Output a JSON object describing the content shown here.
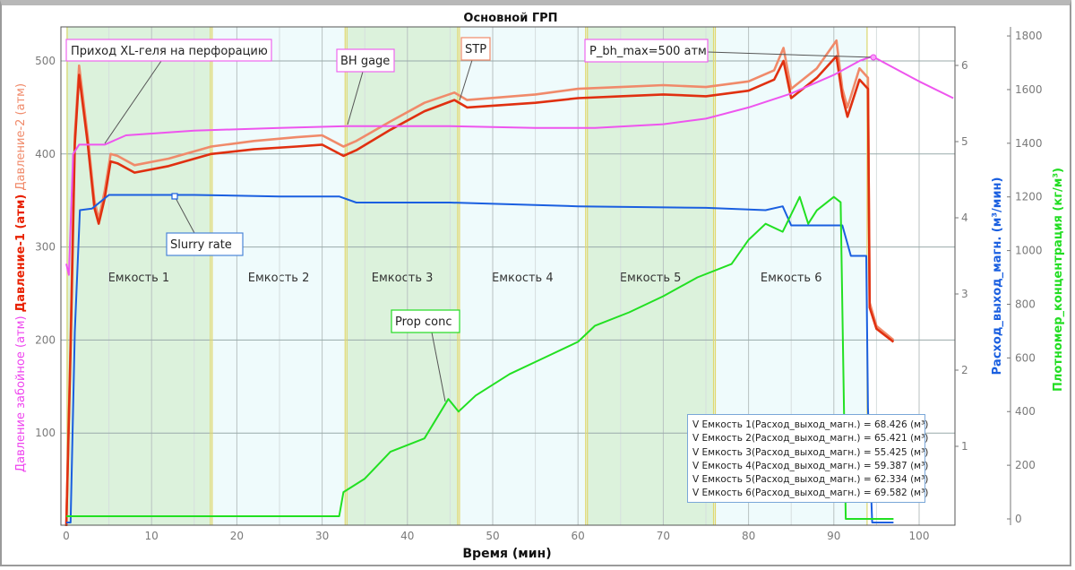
{
  "chart_data": {
    "type": "line",
    "title": "Основной ГРП",
    "xlabel": "Время (мин)",
    "xlim": [
      0,
      104
    ],
    "xticks": [
      0,
      10,
      20,
      30,
      40,
      50,
      60,
      70,
      80,
      90,
      100
    ],
    "grid": true,
    "axes": {
      "left": {
        "labels": [
          "Давление забойное (атм)",
          "Давление-1 (атм)",
          "Давление-2 (атм)"
        ],
        "label_colors": [
          "#ee44ee",
          "#e82000",
          "#f08a6a"
        ],
        "ylim": [
          0,
          540
        ],
        "ticks": [
          100,
          200,
          300,
          400,
          500
        ]
      },
      "right1": {
        "label": "Расход_выход_магн. (м³/мин)",
        "color": "#1a5fe0",
        "ylim": [
          0,
          6.6
        ],
        "ticks": [
          1,
          2,
          3,
          4,
          5,
          6
        ]
      },
      "right2": {
        "label": "Плотномер_концентрация (кг/м³)",
        "color": "#22dd22",
        "ylim": [
          0,
          1850
        ],
        "ticks": [
          0,
          200,
          400,
          600,
          800,
          1000,
          1200,
          1400,
          1600,
          1800
        ]
      }
    },
    "zones": [
      {
        "label": "Емкость 1",
        "start": 0,
        "end": 17,
        "color": "#dcf2dc"
      },
      {
        "label": "Емкость 2",
        "start": 17,
        "end": 32.8,
        "color": "#effbfc"
      },
      {
        "label": "Емкость 3",
        "start": 32.8,
        "end": 46,
        "color": "#dcf2dc"
      },
      {
        "label": "Емкость 4",
        "start": 46,
        "end": 61,
        "color": "#effbfc"
      },
      {
        "label": "Емкость 5",
        "start": 61,
        "end": 76,
        "color": "#dcf2dc"
      },
      {
        "label": "Емкость 6",
        "start": 76,
        "end": 94,
        "color": "#effbfc"
      }
    ],
    "series": [
      {
        "name": "Давление-2 (атм)",
        "axis": "left",
        "color": "#f08a6a",
        "x": [
          0,
          0.5,
          1,
          1.5,
          2.5,
          3.3,
          3.8,
          4.5,
          5.2,
          6,
          8,
          12,
          17,
          22,
          27,
          30,
          32.5,
          34,
          38,
          42,
          45.5,
          47,
          55,
          60,
          65,
          70,
          75,
          80,
          83,
          84.1,
          85,
          88,
          90.3,
          91,
          91.6,
          93,
          94,
          94.2,
          95,
          97
        ],
        "y": [
          0,
          200,
          420,
          495,
          420,
          350,
          330,
          360,
          400,
          398,
          388,
          395,
          408,
          414,
          418,
          420,
          408,
          414,
          435,
          455,
          466,
          458,
          464,
          470,
          472,
          474,
          472,
          478,
          490,
          514,
          470,
          492,
          522,
          470,
          450,
          492,
          482,
          240,
          215,
          200
        ]
      },
      {
        "name": "Давление-1 (атм)",
        "axis": "left",
        "color": "#e03010",
        "x": [
          0,
          0.5,
          1,
          1.5,
          2.5,
          3.3,
          3.8,
          4.5,
          5.2,
          6,
          8,
          12,
          17,
          22,
          27,
          30,
          32.5,
          34,
          38,
          42,
          45.5,
          47,
          55,
          60,
          65,
          70,
          75,
          80,
          83,
          84.1,
          85,
          88,
          90.3,
          91,
          91.6,
          93,
          94,
          94.2,
          95,
          97
        ],
        "y": [
          0,
          190,
          410,
          485,
          412,
          342,
          325,
          352,
          392,
          390,
          380,
          387,
          400,
          405,
          408,
          410,
          398,
          404,
          426,
          446,
          458,
          450,
          455,
          460,
          462,
          464,
          462,
          468,
          480,
          500,
          460,
          482,
          505,
          462,
          440,
          480,
          470,
          235,
          212,
          198
        ]
      },
      {
        "name": "Давление забойное (атм)",
        "axis": "left",
        "color": "#ee55ee",
        "x": [
          0,
          0.3,
          0.8,
          1.5,
          4.5,
          7,
          15,
          25,
          33,
          45,
          55,
          62,
          70,
          75,
          80,
          85,
          90,
          93,
          94.5,
          100,
          104
        ],
        "y": [
          282,
          270,
          400,
          410,
          410,
          420,
          425,
          428,
          430,
          430,
          428,
          428,
          432,
          438,
          450,
          465,
          485,
          500,
          505,
          478,
          460
        ]
      },
      {
        "name": "Расход_выход_магн. (м³/мин)",
        "axis": "right1",
        "color": "#1a5fe0",
        "x": [
          0,
          0.5,
          1,
          1.6,
          3,
          5,
          15,
          25,
          32,
          34,
          45,
          60,
          75,
          82,
          84,
          85,
          91,
          92,
          93.8,
          94,
          94.5,
          97
        ],
        "y": [
          0,
          0,
          2.5,
          4.1,
          4.12,
          4.3,
          4.3,
          4.28,
          4.28,
          4.2,
          4.2,
          4.15,
          4.13,
          4.1,
          4.15,
          3.9,
          3.9,
          3.5,
          3.5,
          1.5,
          0,
          0
        ]
      },
      {
        "name": "Плотномер_концентрация (кг/м³)",
        "axis": "right2",
        "color": "#22e022",
        "x": [
          0,
          32,
          32.5,
          35,
          38,
          42,
          44.8,
          46,
          48,
          52,
          56,
          60,
          62,
          66,
          70,
          74,
          78,
          80,
          82,
          84,
          86,
          87,
          88,
          90,
          90.8,
          91.4,
          94,
          97
        ],
        "y": [
          10,
          10,
          100,
          150,
          250,
          300,
          447,
          400,
          460,
          540,
          600,
          660,
          720,
          770,
          830,
          900,
          950,
          1040,
          1100,
          1070,
          1200,
          1100,
          1150,
          1200,
          1180,
          0,
          0,
          0
        ]
      }
    ],
    "annotations": [
      "Приход XL-геля на перфорацию",
      "BH gage",
      "STP",
      "P_bh_max=500 атм",
      "Slurry rate",
      "Prop conc"
    ],
    "legend_box": [
      "V Емкость 1(Расход_выход_магн.) = 68.426 (м³)",
      "V Емкость 2(Расход_выход_магн.) = 65.421 (м³)",
      "V Емкость 3(Расход_выход_магн.) = 55.425 (м³)",
      "V Емкость 4(Расход_выход_магн.) = 59.387 (м³)",
      "V Емкость 5(Расход_выход_магн.) = 62.334 (м³)",
      "V Емкость 6(Расход_выход_магн.) = 69.582 (м³)"
    ]
  }
}
